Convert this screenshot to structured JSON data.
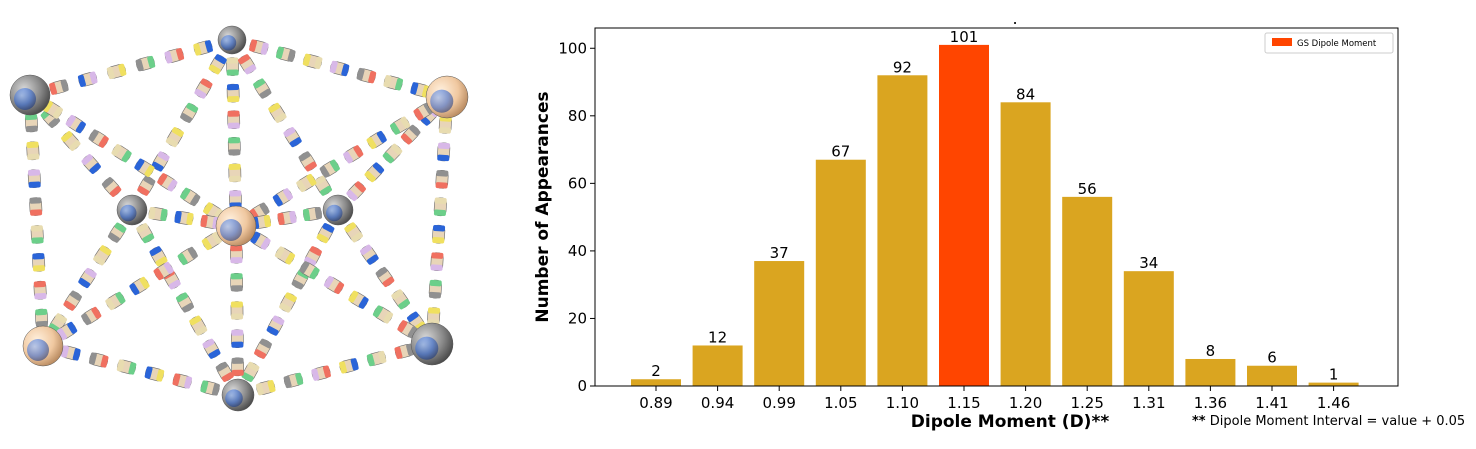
{
  "figure": {
    "molecule_image": "molecular-cage-model",
    "note": {
      "prefix": "**",
      "text": "Dipole Moment Interval = value + 0.05"
    }
  },
  "chart_data": {
    "type": "bar",
    "title": ".",
    "xlabel": "Dipole Moment (D)**",
    "ylabel": "Number of Appearances",
    "categories": [
      "0.89",
      "0.94",
      "0.99",
      "1.05",
      "1.10",
      "1.15",
      "1.20",
      "1.25",
      "1.31",
      "1.36",
      "1.41",
      "1.46"
    ],
    "values": [
      2,
      12,
      37,
      67,
      92,
      101,
      84,
      56,
      34,
      8,
      6,
      1
    ],
    "highlight_index": 5,
    "ylim": [
      0,
      106
    ],
    "yticks": [
      0,
      20,
      40,
      60,
      80,
      100
    ],
    "bar_color": "#DAA520",
    "highlight_color": "#FF4500",
    "legend": {
      "label": "GS Dipole Moment",
      "color": "#FF4500",
      "position": "top-right"
    },
    "grid": false,
    "data_labels": true
  }
}
